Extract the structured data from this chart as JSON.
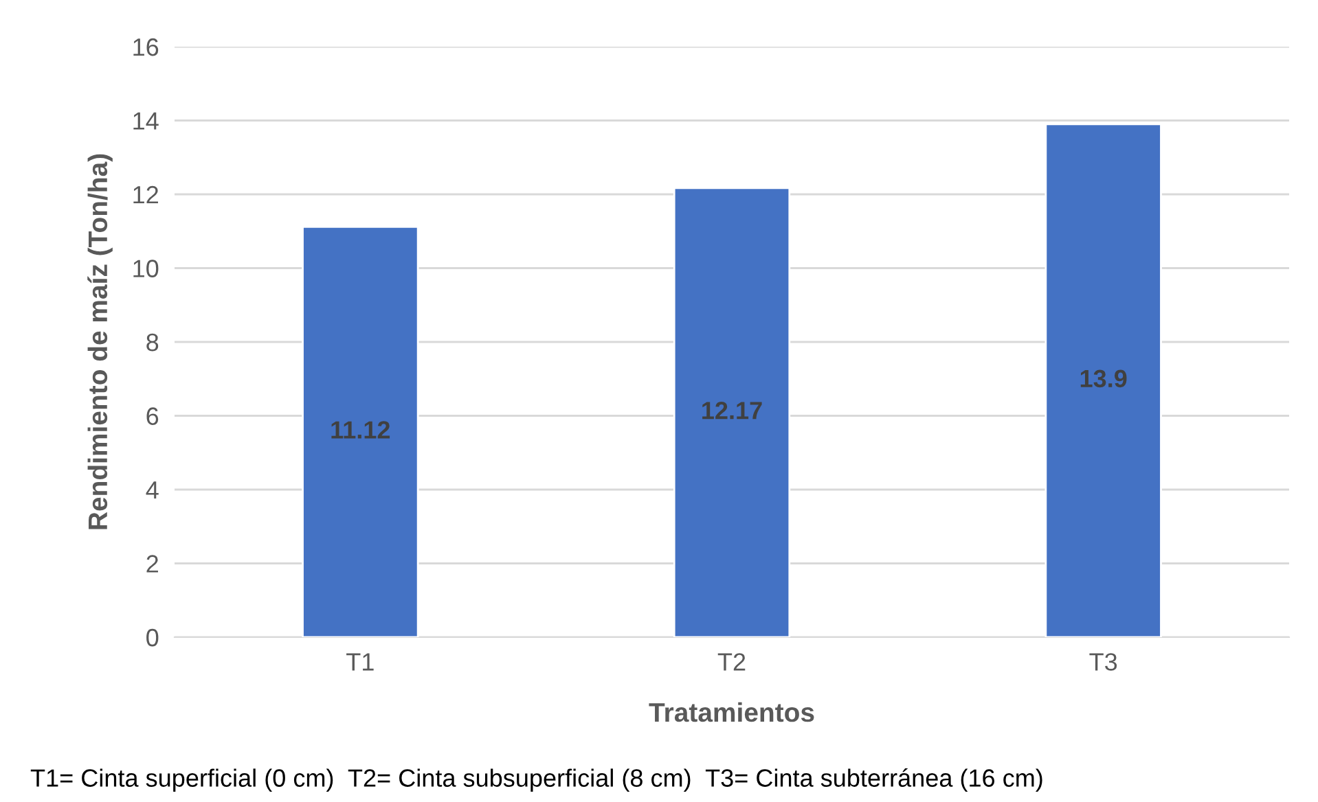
{
  "chart_data": {
    "type": "bar",
    "xlabel": "Tratamientos",
    "ylabel": "Rendimiento de maíz (Ton/ha)",
    "categories": [
      "T1",
      "T2",
      "T3"
    ],
    "series": [
      {
        "color": "#4472c4",
        "values": [
          11.12,
          12.17,
          13.9
        ]
      }
    ],
    "ylim": [
      0,
      16
    ],
    "yticks": [
      0,
      2,
      4,
      6,
      8,
      10,
      12,
      14,
      16
    ],
    "grid": "y",
    "data_labels": true,
    "annotations": [
      "T1= Cinta superficial (0 cm)  T2= Cinta subsuperficial (8 cm)  T3= Cinta subterránea (16 cm)"
    ]
  }
}
